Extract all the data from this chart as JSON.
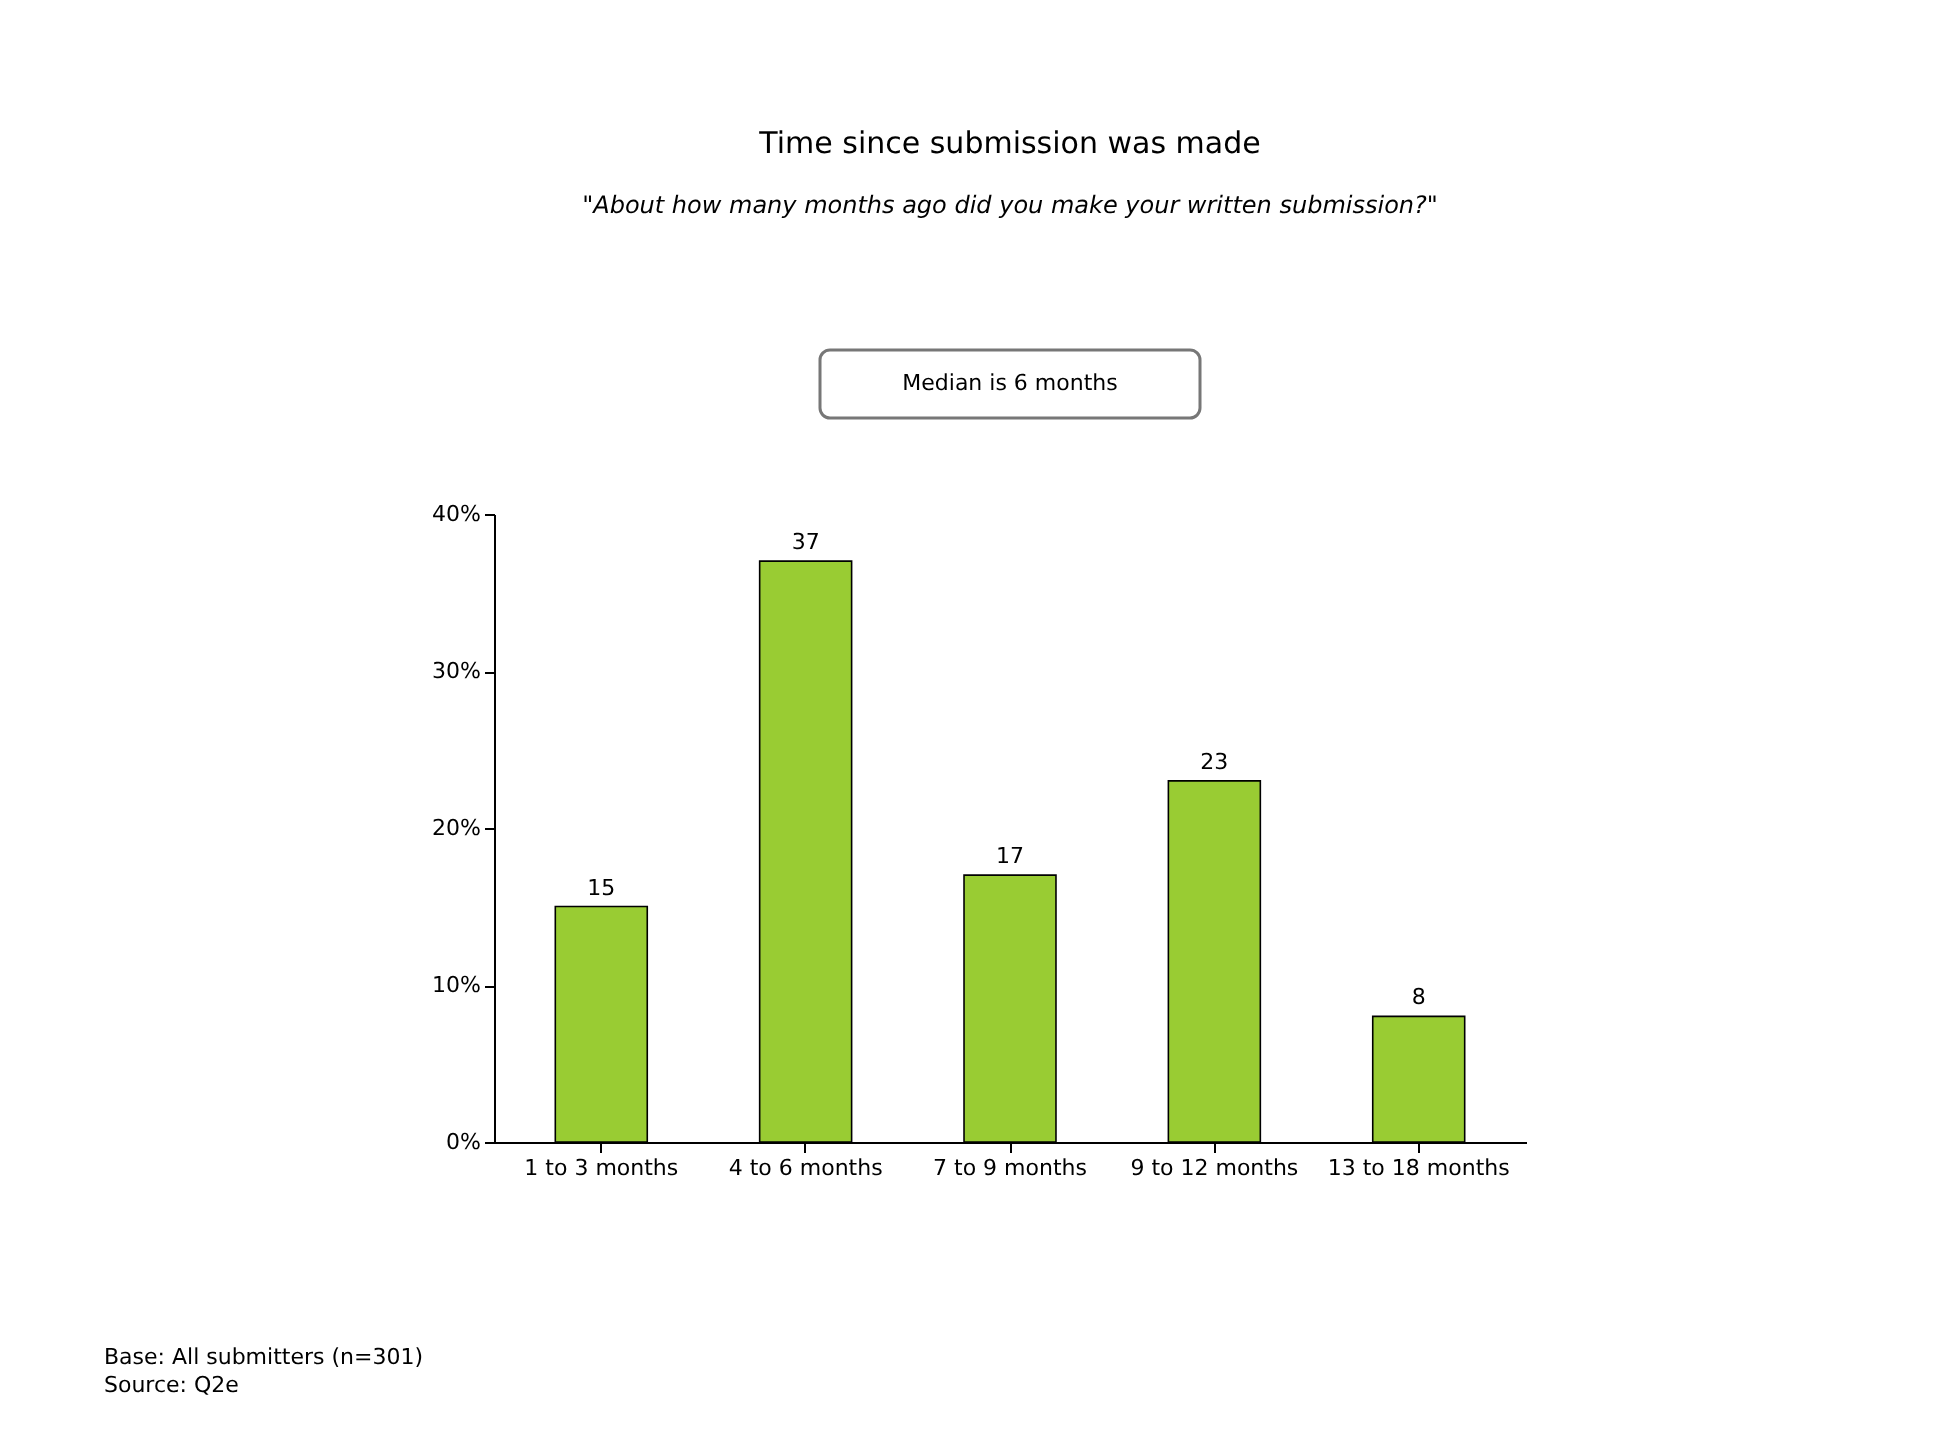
{
  "chart_data": {
    "type": "bar",
    "title": "Time since submission was made",
    "subtitle": "\"About how many months ago did you make your written submission?\"",
    "categories": [
      "1 to 3 months",
      "4 to 6 months",
      "7 to 9 months",
      "9 to 12 months",
      "13 to 18 months"
    ],
    "values": [
      15,
      37,
      17,
      23,
      8
    ],
    "color": "#99cc33",
    "ylim": [
      0,
      40
    ],
    "yticks": [
      {
        "value": 0,
        "label": "0%"
      },
      {
        "value": 10,
        "label": "10%"
      },
      {
        "value": 20,
        "label": "20%"
      },
      {
        "value": 30,
        "label": "30%"
      },
      {
        "value": 40,
        "label": "40%"
      }
    ],
    "data_labels": true,
    "grid": false,
    "annotations": [
      "Median is 6 months",
      "Base: All submitters (n=301)",
      "Source: Q2e"
    ]
  }
}
